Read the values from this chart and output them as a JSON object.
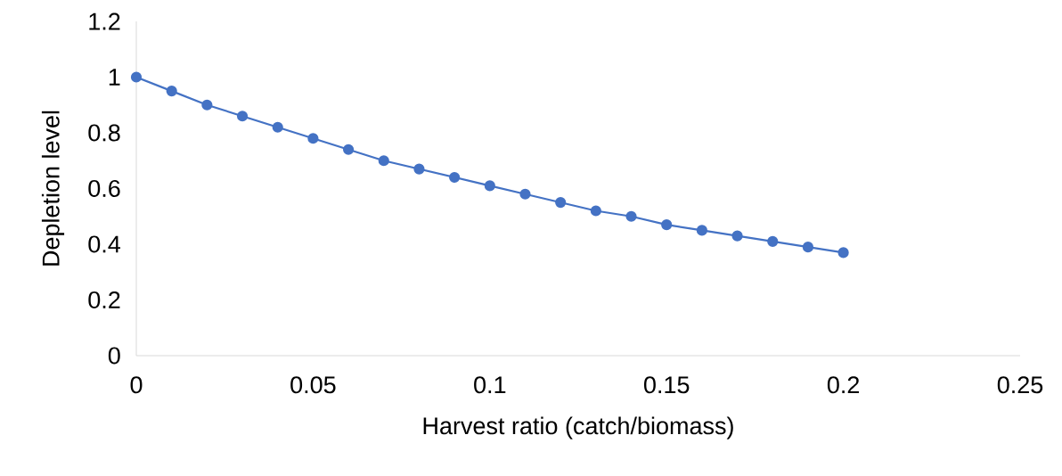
{
  "chart_data": {
    "type": "line",
    "xlabel": "Harvest ratio (catch/biomass)",
    "ylabel": "Depletion level",
    "x": [
      0,
      0.01,
      0.02,
      0.03,
      0.04,
      0.05,
      0.06,
      0.07,
      0.08,
      0.09,
      0.1,
      0.11,
      0.12,
      0.13,
      0.14,
      0.15,
      0.16,
      0.17,
      0.18,
      0.19,
      0.2
    ],
    "series": [
      {
        "color": "#4472c4",
        "values": [
          1,
          0.95,
          0.9,
          0.86,
          0.82,
          0.78,
          0.74,
          0.7,
          0.67,
          0.64,
          0.61,
          0.58,
          0.55,
          0.52,
          0.5,
          0.47,
          0.45,
          0.43,
          0.41,
          0.39,
          0.37
        ]
      }
    ],
    "xlim": [
      0,
      0.25
    ],
    "xticks": [
      0,
      0.05,
      0.1,
      0.15,
      0.2,
      0.25
    ],
    "ylim": [
      0,
      1.2
    ],
    "yticks": [
      0,
      0.2,
      0.4,
      0.6,
      0.8,
      1,
      1.2
    ],
    "grid": false,
    "marker": "circle",
    "line_style": "solid"
  }
}
